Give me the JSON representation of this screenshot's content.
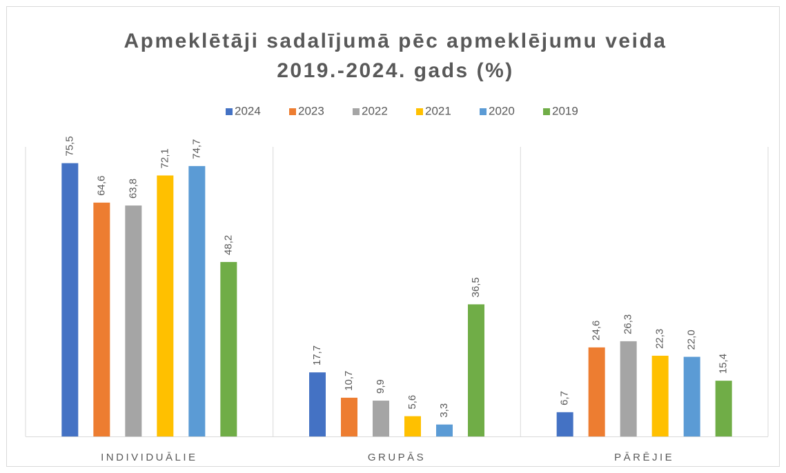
{
  "chart_data": {
    "type": "bar",
    "title": [
      "Apmeklētāji sadalījumā pēc apmeklējumu veida",
      "2019.-2024. gads (%)"
    ],
    "categories": [
      "INDIVIDUĀLIE",
      "GRUPĀS",
      "PĀRĒJIE"
    ],
    "series": [
      {
        "name": "2024",
        "color": "#4472c4",
        "values": [
          75.5,
          17.7,
          6.7
        ],
        "value_labels": [
          "75,5",
          "17,7",
          "6,7"
        ]
      },
      {
        "name": "2023",
        "color": "#ed7d31",
        "values": [
          64.6,
          10.7,
          24.6
        ],
        "value_labels": [
          "64,6",
          "10,7",
          "24,6"
        ]
      },
      {
        "name": "2022",
        "color": "#a5a5a5",
        "values": [
          63.8,
          9.9,
          26.3
        ],
        "value_labels": [
          "63,8",
          "9,9",
          "26,3"
        ]
      },
      {
        "name": "2021",
        "color": "#ffc000",
        "values": [
          72.1,
          5.6,
          22.3
        ],
        "value_labels": [
          "72,1",
          "5,6",
          "22,3"
        ]
      },
      {
        "name": "2020",
        "color": "#5b9bd5",
        "values": [
          74.7,
          3.3,
          22.0
        ],
        "value_labels": [
          "74,7",
          "3,3",
          "22,0"
        ]
      },
      {
        "name": "2019",
        "color": "#70ad47",
        "values": [
          48.2,
          36.5,
          15.4
        ],
        "value_labels": [
          "48,2",
          "36,5",
          "15,4"
        ]
      }
    ],
    "ylim": [
      0,
      80
    ],
    "legend": "top"
  }
}
